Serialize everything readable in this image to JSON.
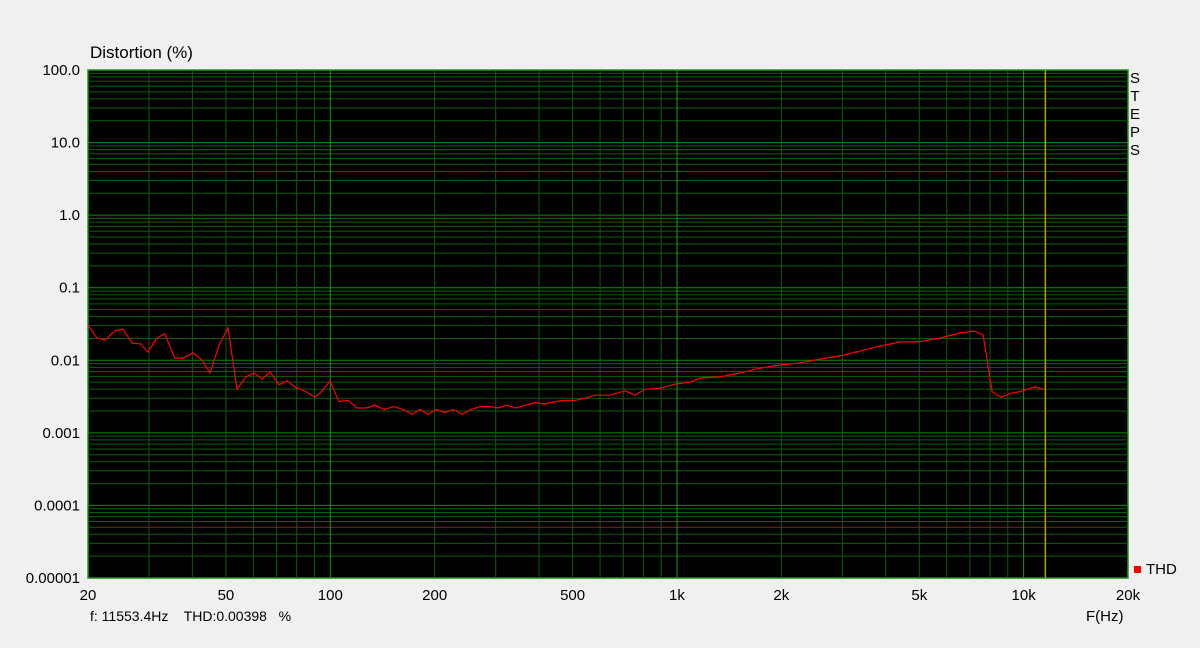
{
  "chart_data": {
    "type": "line",
    "title": "Distortion (%)",
    "xlabel": "F(Hz)",
    "ylabel": "Distortion (%)",
    "x_scale": "log",
    "y_scale": "log",
    "xlim": [
      20,
      20000
    ],
    "ylim": [
      1e-05,
      100
    ],
    "x_ticks": [
      20,
      50,
      100,
      200,
      500,
      1000,
      2000,
      5000,
      10000,
      20000
    ],
    "x_tick_labels": [
      "20",
      "50",
      "100",
      "200",
      "500",
      "1k",
      "2k",
      "5k",
      "10k",
      "20k"
    ],
    "y_ticks": [
      100,
      10,
      1,
      0.1,
      0.01,
      0.001,
      0.0001,
      1e-05
    ],
    "y_tick_labels": [
      "100.0",
      "10.0",
      "1.0",
      "0.1",
      "0.01",
      "0.001",
      "0.0001",
      "0.00001"
    ],
    "grid": true,
    "legend_position": "bottom-right",
    "background": "#000000",
    "grid_color": "#0b5e0b",
    "cursor": {
      "x": 11553.4,
      "color": "#b0a000"
    },
    "series": [
      {
        "name": "THD",
        "color": "#ff0000",
        "x": [
          20,
          21.2,
          22.4,
          23.9,
          25.2,
          26.8,
          28.3,
          29.8,
          31.6,
          33.3,
          35.6,
          37.6,
          40.2,
          42.4,
          45.0,
          47.8,
          50.7,
          53.8,
          57.1,
          60.3,
          63.6,
          67.0,
          71.1,
          75.0,
          79.6,
          85.1,
          90.3,
          95.3,
          99.8,
          105.9,
          112.5,
          119.4,
          126.8,
          134.6,
          142.9,
          152.8,
          162.2,
          172.2,
          181.6,
          191.5,
          201.8,
          214.3,
          226.0,
          239.9,
          254.7,
          270.4,
          289.1,
          304.8,
          323.6,
          343.6,
          364.8,
          389.5,
          416.2,
          444.6,
          475.2,
          508,
          543,
          580,
          641,
          708,
          757,
          809,
          893,
          987,
          1092,
          1166,
          1331,
          1521,
          1738,
          1983,
          2266,
          2590,
          2952,
          3374,
          3855,
          4398,
          4958,
          5741,
          6548,
          7193,
          7637,
          8111,
          8614,
          9149,
          9760,
          10787,
          11380
        ],
        "values": [
          0.0306,
          0.0203,
          0.019,
          0.0253,
          0.027,
          0.0173,
          0.0168,
          0.013,
          0.0203,
          0.023,
          0.0107,
          0.0107,
          0.0126,
          0.0104,
          0.0067,
          0.0163,
          0.0279,
          0.004,
          0.0059,
          0.0067,
          0.0055,
          0.0069,
          0.0046,
          0.0052,
          0.0042,
          0.0037,
          0.0031,
          0.0039,
          0.0052,
          0.0027,
          0.0028,
          0.0022,
          0.0022,
          0.0024,
          0.0021,
          0.0023,
          0.0021,
          0.0018,
          0.0021,
          0.0018,
          0.0021,
          0.0019,
          0.0021,
          0.0018,
          0.0021,
          0.0023,
          0.0023,
          0.0022,
          0.0024,
          0.0022,
          0.0024,
          0.0026,
          0.0025,
          0.0027,
          0.0028,
          0.0028,
          0.003,
          0.0033,
          0.0033,
          0.0038,
          0.0033,
          0.004,
          0.0041,
          0.0047,
          0.005,
          0.0057,
          0.0059,
          0.0067,
          0.0078,
          0.0086,
          0.0092,
          0.0104,
          0.0115,
          0.0134,
          0.0157,
          0.0179,
          0.0179,
          0.0203,
          0.0238,
          0.0253,
          0.0223,
          0.0037,
          0.0031,
          0.0035,
          0.0037,
          0.0043,
          0.004
        ]
      }
    ]
  },
  "side_label": [
    "S",
    "T",
    "E",
    "P",
    "S"
  ],
  "readout": {
    "freq": "f: 11553.4Hz",
    "thd_label": "THD:0.00398",
    "unit": "%"
  }
}
